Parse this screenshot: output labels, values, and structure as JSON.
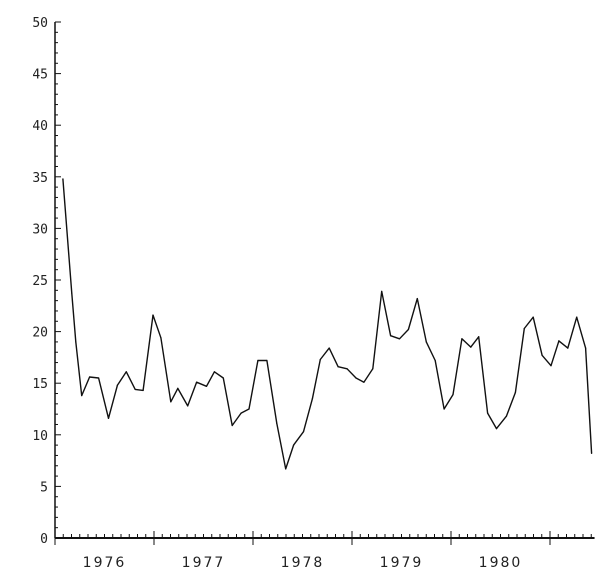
{
  "chart_data": {
    "type": "line",
    "title": "",
    "xlabel": "",
    "ylabel": "",
    "xlim": [
      1976,
      1981.45
    ],
    "ylim": [
      0,
      50
    ],
    "y_ticks": [
      "0",
      "5",
      "10",
      "15",
      "20",
      "25",
      "30",
      "35",
      "40",
      "45",
      "50"
    ],
    "x_tick_labels": [
      "1976",
      "1977",
      "1978",
      "1979",
      "1980"
    ],
    "grid": false,
    "line_color": "#111111",
    "series": [
      {
        "x": [
          1976.08,
          1976.17,
          1976.21,
          1976.27,
          1976.35,
          1976.44,
          1976.54,
          1976.63,
          1976.72,
          1976.81,
          1976.89,
          1976.99,
          1977.07,
          1977.17,
          1977.24,
          1977.34,
          1977.43,
          1977.53,
          1977.61,
          1977.7,
          1977.79,
          1977.88,
          1977.96,
          1978.05,
          1978.14,
          1978.24,
          1978.33,
          1978.41,
          1978.51,
          1978.6,
          1978.68,
          1978.77,
          1978.86,
          1978.95,
          1979.04,
          1979.12,
          1979.21,
          1979.3,
          1979.39,
          1979.48,
          1979.57,
          1979.66,
          1979.75,
          1979.84,
          1979.93,
          1980.02,
          1980.11,
          1980.2,
          1980.28,
          1980.37,
          1980.46,
          1980.56,
          1980.65,
          1980.74,
          1980.83,
          1980.92,
          1981.01,
          1981.09,
          1981.18,
          1981.27,
          1981.36,
          1981.42
        ],
        "values": [
          34.8,
          23.7,
          19.0,
          13.8,
          15.6,
          15.5,
          11.6,
          14.8,
          16.1,
          14.4,
          14.3,
          21.6,
          19.4,
          13.2,
          14.5,
          12.8,
          15.1,
          14.7,
          16.1,
          15.5,
          10.9,
          12.1,
          12.5,
          17.2,
          17.2,
          11.1,
          6.7,
          9.0,
          10.3,
          13.5,
          17.3,
          18.4,
          16.6,
          16.4,
          15.5,
          15.1,
          16.4,
          23.9,
          19.6,
          19.3,
          20.2,
          23.2,
          19.0,
          17.2,
          12.5,
          13.9,
          19.3,
          18.5,
          19.5,
          12.1,
          10.6,
          11.8,
          14.1,
          20.3,
          21.4,
          17.7,
          16.7,
          19.1,
          18.4,
          21.4,
          18.4,
          8.2
        ]
      }
    ]
  }
}
